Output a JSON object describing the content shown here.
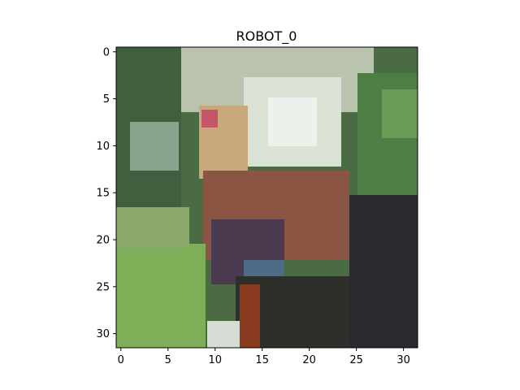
{
  "chart_data": {
    "type": "heatmap",
    "title": "ROBOT_0",
    "xlabel": "",
    "ylabel": "",
    "xlim": [
      -0.5,
      31.5
    ],
    "ylim": [
      31.5,
      -0.5
    ],
    "grid": false,
    "x_ticks": [
      0,
      5,
      10,
      15,
      20,
      25,
      30
    ],
    "y_ticks": [
      0,
      5,
      10,
      15,
      20,
      25,
      30
    ],
    "image_rows": 32,
    "image_cols": 32
  }
}
